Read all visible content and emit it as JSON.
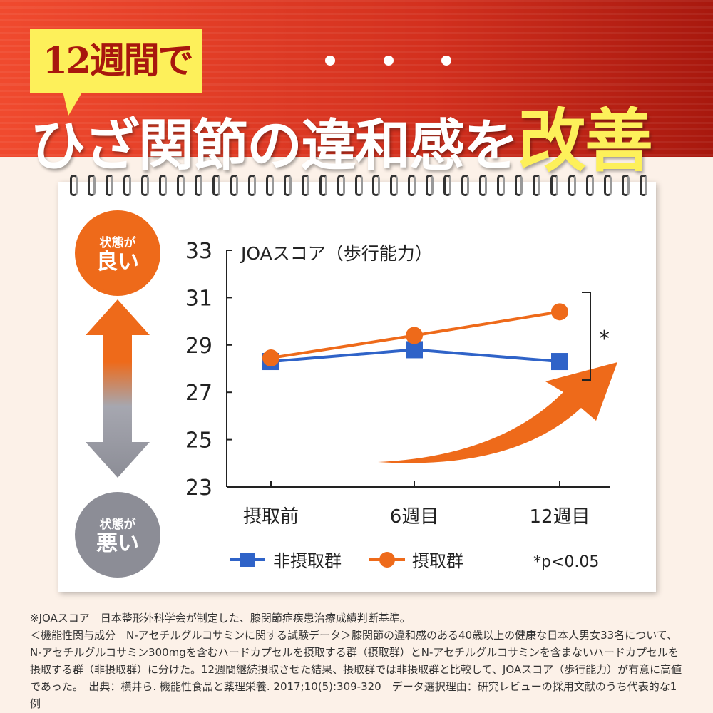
{
  "header": {
    "badge": "12週間で",
    "title_part": "ひざ関節の違和感を",
    "title_highlight": "改善"
  },
  "side": {
    "good_small": "状態が",
    "good_big": "良い",
    "bad_small": "状態が",
    "bad_big": "悪い"
  },
  "chart_data": {
    "type": "line",
    "title": "JOAスコア（歩行能力）",
    "categories": [
      "摂取前",
      "6週目",
      "12週目"
    ],
    "ylim": [
      23,
      33
    ],
    "yticks": [
      23,
      25,
      27,
      29,
      31,
      33
    ],
    "series": [
      {
        "name": "非摂取群",
        "color": "#2f63c8",
        "marker": "square",
        "values": [
          28.3,
          28.8,
          28.3
        ]
      },
      {
        "name": "摂取群",
        "color": "#ee6a1a",
        "marker": "circle",
        "values": [
          28.45,
          29.4,
          30.4
        ]
      }
    ],
    "annotation": "*",
    "significance_note": "*p<0.05",
    "grid": false
  },
  "footnote": [
    "※JOAスコア　日本整形外科学会が制定した、膝関節症疾患治療成績判断基準。",
    "＜機能性関与成分　N-アセチルグルコサミンに関する試験データ＞膝関節の違和感のある40歳以上の健康な日本人男女33名について、N-アセチルグルコサミン300mgを含むハードカプセルを摂取する群（摂取群）とN-アセチルグルコサミンを含まないハードカプセルを摂取する群（非摂取群）に分けた。12週間継続摂取させた結果、摂取群では非摂取群と比較して、JOAスコア（歩行能力）が有意に高値であった。　出典：横井ら. 機能性食品と薬理栄養. 2017;10(5):309-320　データ選択理由：研究レビューの採用文献のうち代表的な1例"
  ]
}
